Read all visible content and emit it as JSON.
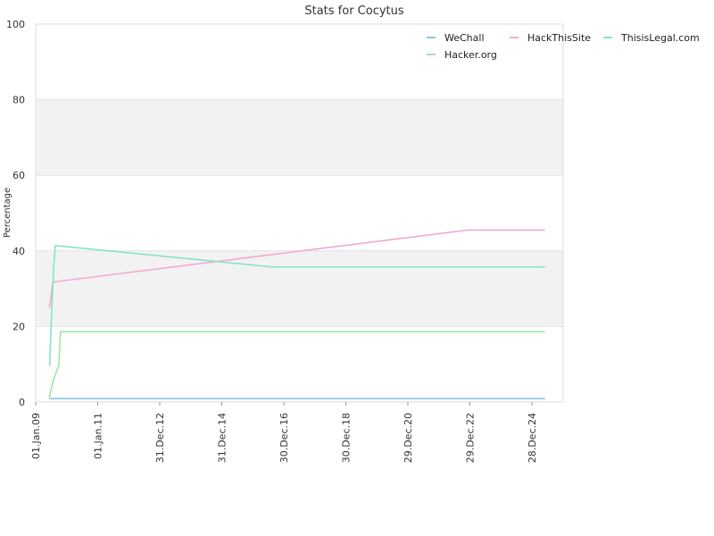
{
  "chart_data": {
    "type": "line",
    "title": "Stats for Cocytus",
    "xlabel": "",
    "ylabel": "Percentage",
    "ylim": [
      0,
      100
    ],
    "yticks": [
      0,
      20,
      40,
      60,
      80,
      100
    ],
    "xlim": [
      "2009-01-01",
      "2025-12-31"
    ],
    "xticks": [
      "01.Jan.09",
      "01.Jan.11",
      "31.Dec.12",
      "31.Dec.14",
      "30.Dec.16",
      "30.Dec.18",
      "29.Dec.20",
      "29.Dec.22",
      "28.Dec.24"
    ],
    "xtick_dates": [
      "2009-01-01",
      "2011-01-01",
      "2012-12-31",
      "2014-12-31",
      "2016-12-30",
      "2018-12-30",
      "2020-12-29",
      "2022-12-29",
      "2024-12-28"
    ],
    "grid": true,
    "background_bands": [
      [
        20,
        40
      ],
      [
        60,
        80
      ]
    ],
    "legend_position": "top-right",
    "series": [
      {
        "name": "WeChall",
        "color": "#8ac4e6",
        "points": [
          [
            "2009-06-10",
            0.9
          ],
          [
            "2025-06-01",
            0.9
          ]
        ]
      },
      {
        "name": "HackThisSite",
        "color": "#f4a8cf",
        "points": [
          [
            "2009-06-10",
            25.0
          ],
          [
            "2009-07-01",
            27.5
          ],
          [
            "2009-07-20",
            31.5
          ],
          [
            "2009-08-10",
            31.8
          ],
          [
            "2022-12-10",
            45.5
          ],
          [
            "2025-06-01",
            45.5
          ]
        ]
      },
      {
        "name": "ThisisLegal.com",
        "color": "#86e3c6",
        "points": [
          [
            "2009-06-15",
            9.5
          ],
          [
            "2009-07-01",
            20.0
          ],
          [
            "2009-08-01",
            36.0
          ],
          [
            "2009-08-20",
            41.4
          ],
          [
            "2016-09-01",
            35.7
          ],
          [
            "2025-06-01",
            35.7
          ]
        ]
      },
      {
        "name": "Hacker.org",
        "color": "#9ae8a8",
        "points": [
          [
            "2009-06-10",
            1.2
          ],
          [
            "2009-08-01",
            6.0
          ],
          [
            "2009-10-01",
            10.0
          ],
          [
            "2009-10-20",
            18.6
          ],
          [
            "2025-06-01",
            18.6
          ]
        ]
      }
    ]
  }
}
